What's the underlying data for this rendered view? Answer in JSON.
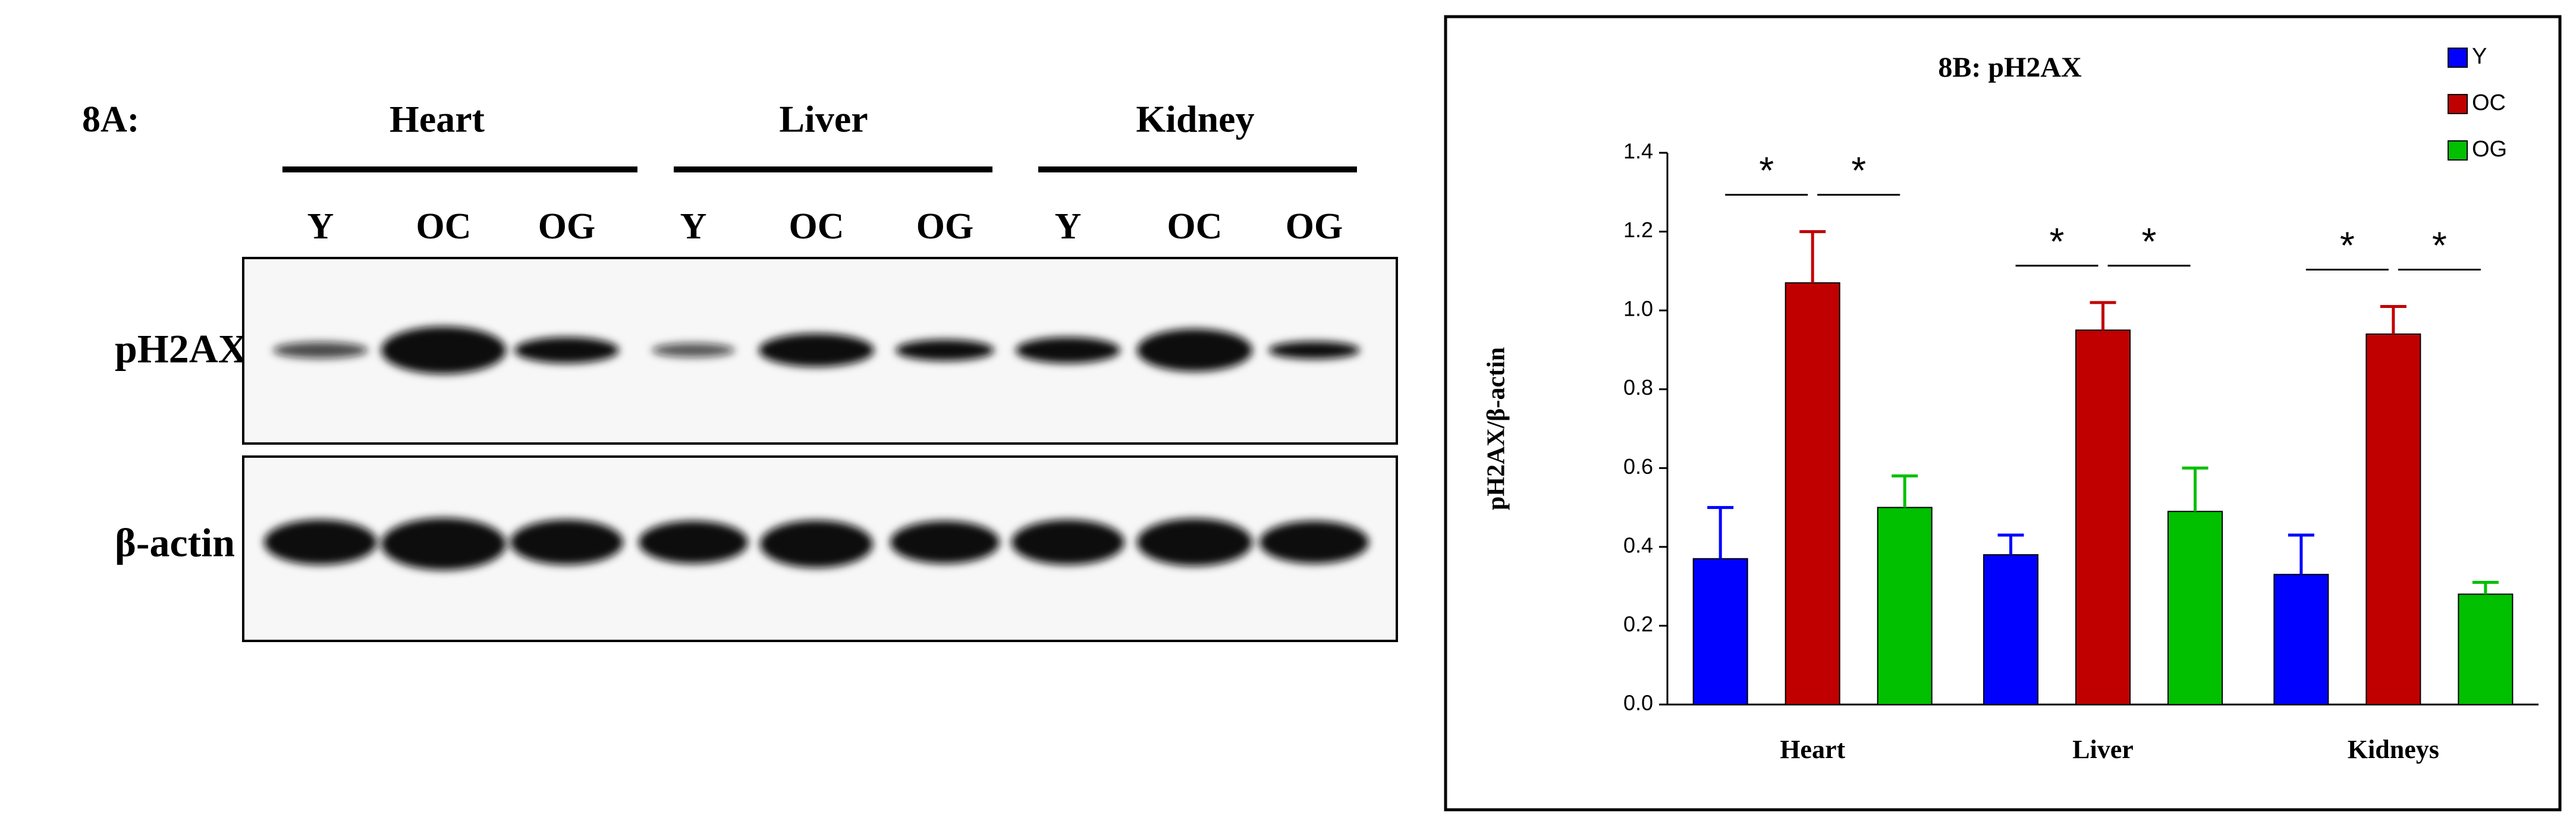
{
  "blot": {
    "panel_label": "8A:",
    "tissues": [
      "Heart",
      "Liver",
      "Kidney"
    ],
    "lanes": [
      "Y",
      "OC",
      "OG",
      "Y",
      "OC",
      "OG",
      "Y",
      "OC",
      "OG"
    ],
    "rows": [
      "pH2AX",
      "β-actin"
    ]
  },
  "chart_data": {
    "type": "bar",
    "title": "8B: pH2AX",
    "y_label": "pH2AX/β-actin",
    "categories": [
      "Heart",
      "Liver",
      "Kidneys"
    ],
    "series": [
      {
        "name": "Y",
        "color": "#0000ff",
        "values": [
          0.37,
          0.38,
          0.33
        ],
        "errors": [
          0.13,
          0.05,
          0.1
        ]
      },
      {
        "name": "OC",
        "color": "#c00000",
        "values": [
          1.07,
          0.95,
          0.94
        ],
        "errors": [
          0.13,
          0.07,
          0.07
        ]
      },
      {
        "name": "OG",
        "color": "#00c000",
        "values": [
          0.5,
          0.49,
          0.28
        ],
        "errors": [
          0.08,
          0.11,
          0.03
        ]
      }
    ],
    "ylim": [
      0,
      1.4
    ],
    "yticks": [
      {
        "value": 0,
        "label": "0.0"
      },
      {
        "value": 0.2,
        "label": "0.2"
      },
      {
        "value": 0.4,
        "label": "0.4"
      },
      {
        "value": 0.6,
        "label": "0.6"
      },
      {
        "value": 0.8,
        "label": "0.8"
      },
      {
        "value": 1.0,
        "label": "1.0"
      },
      {
        "value": 1.2,
        "label": "1.2"
      },
      {
        "value": 1.4,
        "label": "1.4"
      }
    ],
    "annotations": [
      "*",
      "*",
      "*",
      "*",
      "*",
      "*"
    ],
    "legend": "upper right",
    "grid": false
  }
}
